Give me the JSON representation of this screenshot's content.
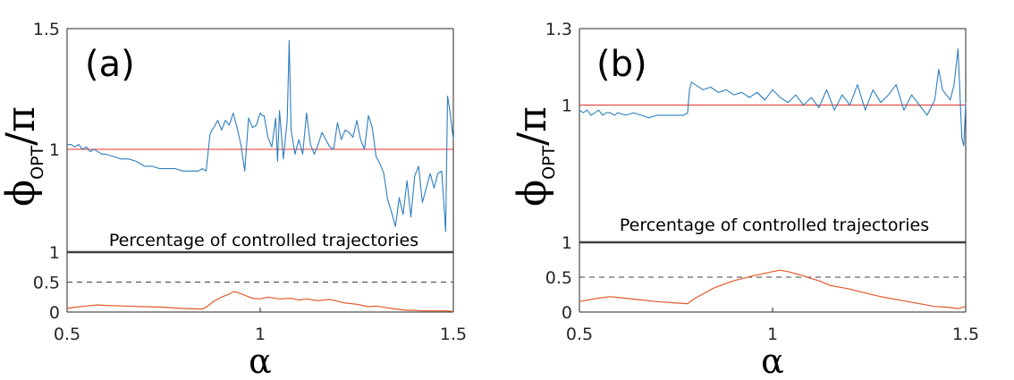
{
  "chart_data": [
    {
      "type": "line",
      "panel_label": "(a)",
      "ylabel": {
        "main": "ϕ",
        "subscript": "OPT",
        "slash": "/",
        "denominator": "π"
      },
      "xlabel": "α",
      "caption": "Percentage of controlled trajectories",
      "xlim": [
        0.5,
        1.5
      ],
      "x_ticks": [
        "0.5",
        "1",
        "1.5"
      ],
      "x_tick_values": [
        0.5,
        1.0,
        1.5
      ],
      "phi_ylim": [
        0.5,
        1.5
      ],
      "phi_y_ticks": [
        "1.5",
        "1"
      ],
      "phi_y_tick_values": [
        1.5,
        1.0
      ],
      "phi_reference": 1.0,
      "pct_ylim": [
        0,
        1
      ],
      "pct_y_ticks": [
        "1",
        "0.5",
        "0"
      ],
      "pct_y_tick_values": [
        1,
        0.5,
        0
      ],
      "pct_threshold": 0.5,
      "colors": {
        "phi": "#2e7ebf",
        "reference": "#e8322b",
        "pct": "#e05a2b",
        "solid": "#404040",
        "dashed": "#404040"
      },
      "series": [
        {
          "name": "phi_opt",
          "x": [
            0.5,
            0.51,
            0.52,
            0.53,
            0.54,
            0.55,
            0.56,
            0.57,
            0.58,
            0.59,
            0.6,
            0.62,
            0.64,
            0.66,
            0.68,
            0.7,
            0.72,
            0.74,
            0.76,
            0.78,
            0.8,
            0.82,
            0.84,
            0.85,
            0.86,
            0.87,
            0.875,
            0.88,
            0.89,
            0.9,
            0.91,
            0.92,
            0.93,
            0.94,
            0.95,
            0.96,
            0.97,
            0.98,
            0.99,
            1.0,
            1.005,
            1.01,
            1.02,
            1.03,
            1.04,
            1.045,
            1.05,
            1.06,
            1.07,
            1.075,
            1.08,
            1.09,
            1.1,
            1.11,
            1.12,
            1.13,
            1.14,
            1.15,
            1.16,
            1.17,
            1.18,
            1.19,
            1.2,
            1.21,
            1.22,
            1.23,
            1.24,
            1.25,
            1.26,
            1.27,
            1.28,
            1.29,
            1.3,
            1.31,
            1.32,
            1.33,
            1.34,
            1.35,
            1.36,
            1.37,
            1.38,
            1.39,
            1.4,
            1.41,
            1.42,
            1.43,
            1.44,
            1.45,
            1.46,
            1.47,
            1.48,
            1.485,
            1.49,
            1.5
          ],
          "values": [
            1.02,
            1.02,
            1.01,
            1.02,
            1.0,
            1.01,
            0.99,
            1.0,
            0.99,
            0.98,
            0.98,
            0.97,
            0.96,
            0.96,
            0.95,
            0.93,
            0.93,
            0.92,
            0.92,
            0.92,
            0.91,
            0.91,
            0.91,
            0.92,
            0.91,
            1.06,
            1.08,
            1.09,
            1.12,
            1.08,
            1.12,
            1.1,
            1.15,
            1.09,
            1.02,
            0.91,
            1.13,
            1.09,
            1.1,
            1.15,
            1.14,
            1.14,
            1.05,
            1.01,
            1.13,
            0.95,
            1.16,
            0.96,
            1.12,
            1.45,
            1.08,
            0.98,
            1.04,
            0.98,
            1.15,
            1.02,
            0.98,
            1.02,
            1.07,
            1.04,
            1.01,
            1.0,
            1.11,
            1.04,
            1.08,
            1.07,
            1.05,
            1.12,
            1.04,
            1.0,
            1.14,
            1.09,
            0.97,
            0.94,
            0.9,
            0.79,
            0.74,
            0.68,
            0.8,
            0.73,
            0.87,
            0.72,
            0.89,
            0.93,
            0.78,
            0.84,
            0.9,
            0.84,
            0.9,
            0.91,
            0.66,
            1.22,
            1.17,
            1.04
          ]
        },
        {
          "name": "percentage",
          "x": [
            0.5,
            0.52,
            0.55,
            0.58,
            0.6,
            0.65,
            0.7,
            0.75,
            0.8,
            0.85,
            0.86,
            0.88,
            0.9,
            0.92,
            0.93,
            0.94,
            0.96,
            0.98,
            1.0,
            1.02,
            1.05,
            1.08,
            1.1,
            1.12,
            1.15,
            1.18,
            1.2,
            1.22,
            1.25,
            1.28,
            1.3,
            1.33,
            1.35,
            1.38,
            1.4,
            1.42,
            1.45,
            1.48,
            1.5
          ],
          "values": [
            0.06,
            0.08,
            0.1,
            0.12,
            0.11,
            0.1,
            0.09,
            0.08,
            0.06,
            0.05,
            0.08,
            0.18,
            0.25,
            0.3,
            0.34,
            0.33,
            0.28,
            0.23,
            0.22,
            0.25,
            0.22,
            0.23,
            0.2,
            0.22,
            0.19,
            0.21,
            0.18,
            0.15,
            0.13,
            0.09,
            0.1,
            0.07,
            0.05,
            0.03,
            0.03,
            0.02,
            0.02,
            0.02,
            0.01
          ]
        }
      ]
    },
    {
      "type": "line",
      "panel_label": "(b)",
      "ylabel": {
        "main": "ϕ",
        "subscript": "OPT",
        "slash": "/",
        "denominator": "π"
      },
      "xlabel": "α",
      "caption": "Percentage of controlled trajectories",
      "xlim": [
        0.5,
        1.5
      ],
      "x_ticks": [
        "0.5",
        "1",
        "1.5"
      ],
      "x_tick_values": [
        0.5,
        1.0,
        1.5
      ],
      "phi_ylim": [
        0.5,
        1.3
      ],
      "phi_y_ticks": [
        "1.3",
        "1"
      ],
      "phi_y_tick_values": [
        1.3,
        1.0
      ],
      "phi_reference": 1.0,
      "pct_ylim": [
        0,
        1
      ],
      "pct_y_ticks": [
        "1",
        "0.5",
        "0"
      ],
      "pct_y_tick_values": [
        1,
        0.5,
        0
      ],
      "pct_threshold": 0.5,
      "colors": {
        "phi": "#2e7ebf",
        "reference": "#e8322b",
        "pct": "#e05a2b",
        "solid": "#404040",
        "dashed": "#404040"
      },
      "series": [
        {
          "name": "phi_opt",
          "x": [
            0.5,
            0.51,
            0.52,
            0.53,
            0.54,
            0.55,
            0.56,
            0.57,
            0.58,
            0.59,
            0.6,
            0.62,
            0.64,
            0.66,
            0.68,
            0.7,
            0.72,
            0.74,
            0.76,
            0.77,
            0.78,
            0.785,
            0.79,
            0.8,
            0.82,
            0.84,
            0.86,
            0.88,
            0.9,
            0.92,
            0.94,
            0.96,
            0.98,
            1.0,
            1.02,
            1.04,
            1.06,
            1.08,
            1.1,
            1.12,
            1.14,
            1.16,
            1.18,
            1.2,
            1.22,
            1.24,
            1.26,
            1.28,
            1.3,
            1.32,
            1.34,
            1.36,
            1.38,
            1.4,
            1.42,
            1.43,
            1.44,
            1.45,
            1.46,
            1.47,
            1.48,
            1.49,
            1.495,
            1.5
          ],
          "values": [
            0.98,
            0.97,
            0.98,
            0.96,
            0.97,
            0.98,
            0.96,
            0.97,
            0.97,
            0.96,
            0.97,
            0.96,
            0.97,
            0.96,
            0.95,
            0.96,
            0.96,
            0.96,
            0.96,
            0.96,
            0.97,
            1.06,
            1.09,
            1.08,
            1.06,
            1.07,
            1.05,
            1.06,
            1.04,
            1.05,
            1.03,
            1.05,
            1.02,
            1.06,
            1.03,
            1.01,
            1.04,
            1.0,
            1.03,
            0.99,
            1.06,
            0.98,
            1.04,
            1.0,
            1.08,
            0.98,
            1.06,
            1.01,
            1.04,
            1.08,
            0.98,
            1.04,
            1.0,
            0.96,
            1.02,
            1.14,
            1.06,
            1.04,
            1.02,
            1.08,
            1.22,
            0.87,
            0.84,
            1.01
          ]
        },
        {
          "name": "percentage",
          "x": [
            0.5,
            0.52,
            0.55,
            0.58,
            0.6,
            0.65,
            0.7,
            0.75,
            0.78,
            0.8,
            0.85,
            0.9,
            0.95,
            1.0,
            1.02,
            1.04,
            1.06,
            1.08,
            1.1,
            1.12,
            1.15,
            1.18,
            1.2,
            1.22,
            1.25,
            1.28,
            1.3,
            1.33,
            1.35,
            1.38,
            1.4,
            1.42,
            1.45,
            1.48,
            1.5
          ],
          "values": [
            0.15,
            0.17,
            0.2,
            0.22,
            0.21,
            0.18,
            0.15,
            0.13,
            0.12,
            0.2,
            0.35,
            0.45,
            0.52,
            0.58,
            0.6,
            0.58,
            0.55,
            0.52,
            0.48,
            0.45,
            0.38,
            0.35,
            0.33,
            0.3,
            0.26,
            0.22,
            0.2,
            0.17,
            0.15,
            0.12,
            0.1,
            0.08,
            0.07,
            0.05,
            0.08
          ]
        }
      ]
    }
  ]
}
